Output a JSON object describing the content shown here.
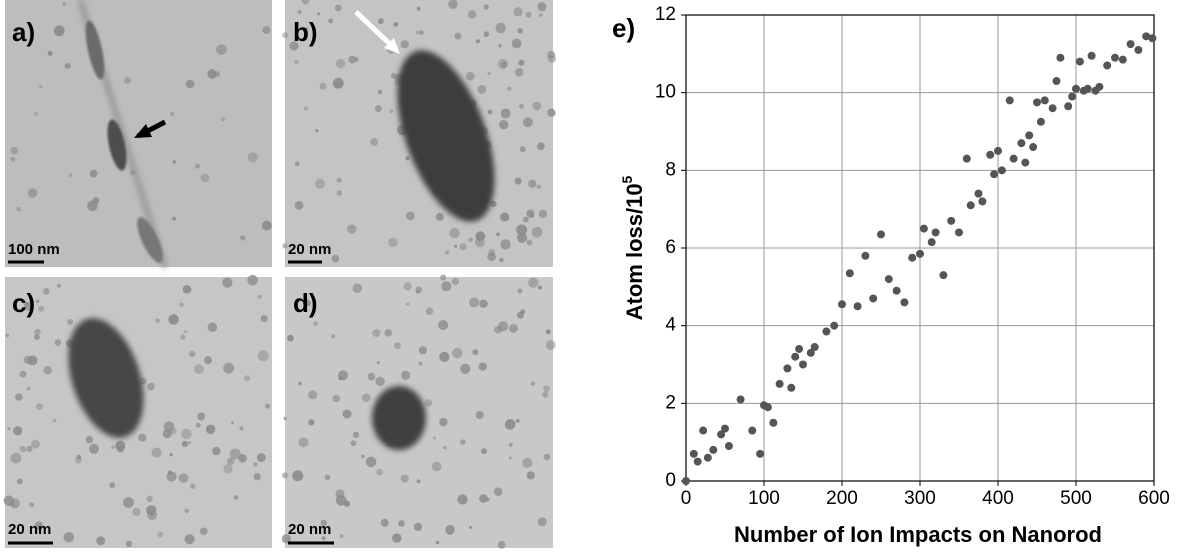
{
  "panels": [
    {
      "label": "a)",
      "scale_bar": "100 nm"
    },
    {
      "label": "b)",
      "scale_bar": "20 nm"
    },
    {
      "label": "c)",
      "scale_bar": "20 nm"
    },
    {
      "label": "d)",
      "scale_bar": "20 nm"
    }
  ],
  "chart_data": {
    "type": "scatter",
    "panel_label": "e)",
    "xlabel": "Number of Ion Impacts on Nanorod",
    "ylabel": "Atom loss/10",
    "ylabel_superscript": "5",
    "x": [
      0,
      10,
      15,
      22,
      28,
      35,
      45,
      50,
      55,
      70,
      85,
      95,
      100,
      105,
      112,
      120,
      130,
      135,
      140,
      145,
      150,
      160,
      165,
      180,
      190,
      200,
      210,
      220,
      230,
      240,
      250,
      260,
      270,
      280,
      290,
      300,
      305,
      315,
      320,
      330,
      340,
      350,
      360,
      365,
      375,
      380,
      390,
      395,
      400,
      405,
      415,
      420,
      430,
      435,
      440,
      445,
      450,
      455,
      460,
      470,
      475,
      480,
      490,
      495,
      500,
      505,
      510,
      515,
      520,
      525,
      530,
      540,
      550,
      560,
      570,
      580,
      590,
      598
    ],
    "values": [
      0,
      0.7,
      0.5,
      1.3,
      0.6,
      0.8,
      1.2,
      1.35,
      0.9,
      2.1,
      1.3,
      0.7,
      1.95,
      1.9,
      1.5,
      2.5,
      2.9,
      2.4,
      3.2,
      3.4,
      3.0,
      3.3,
      3.45,
      3.85,
      4.0,
      4.55,
      5.35,
      4.5,
      5.8,
      4.7,
      6.35,
      5.2,
      4.9,
      4.6,
      5.75,
      5.85,
      6.5,
      6.15,
      6.4,
      5.3,
      6.7,
      6.4,
      8.3,
      7.1,
      7.4,
      7.2,
      8.4,
      7.9,
      8.5,
      8.0,
      9.8,
      8.3,
      8.7,
      8.2,
      8.9,
      8.6,
      9.75,
      9.25,
      9.8,
      9.6,
      10.3,
      10.9,
      9.65,
      9.9,
      10.1,
      10.8,
      10.05,
      10.1,
      10.95,
      10.05,
      10.15,
      10.7,
      10.9,
      10.85,
      11.25,
      11.1,
      11.45,
      11.4
    ],
    "color": "#555555",
    "xlim": [
      0,
      600
    ],
    "ylim": [
      0,
      12
    ],
    "xticks": [
      0,
      100,
      200,
      300,
      400,
      500,
      600
    ],
    "yticks": [
      0,
      2,
      4,
      6,
      8,
      10,
      12
    ],
    "grid": true
  }
}
